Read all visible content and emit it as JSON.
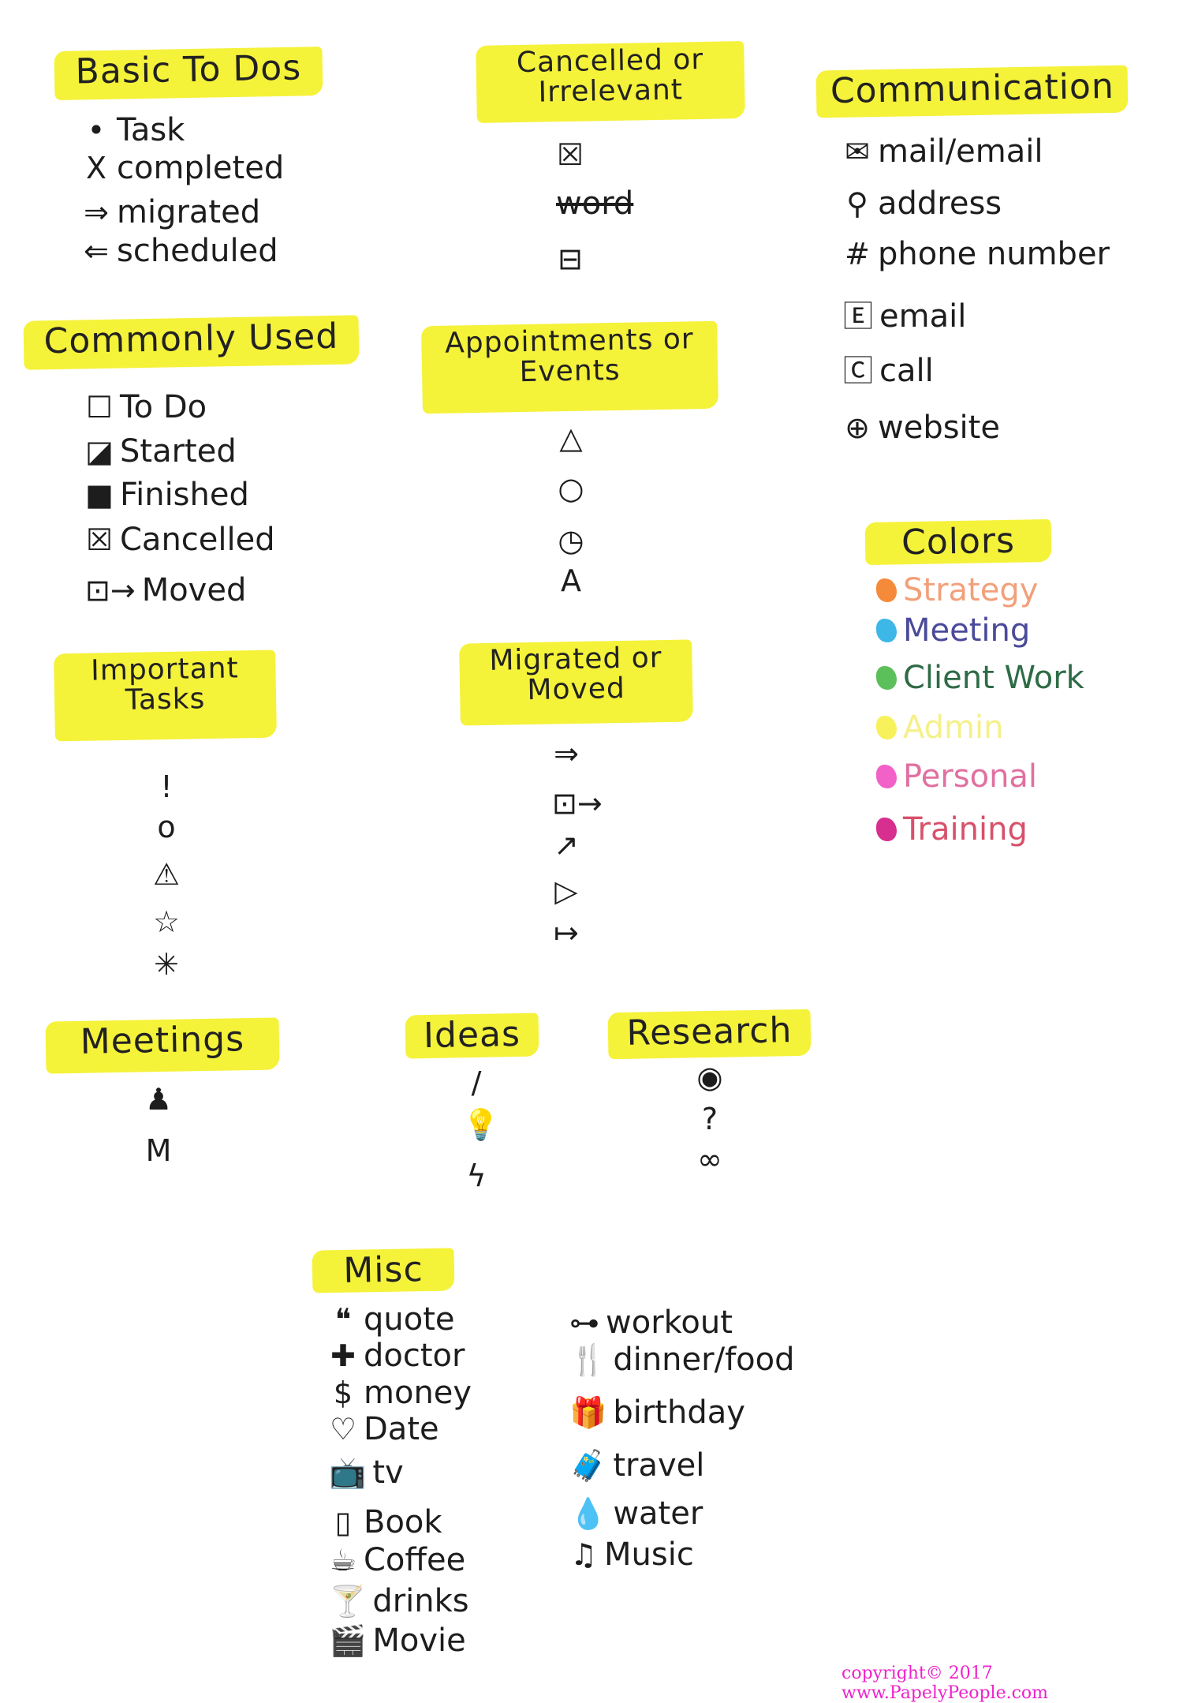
{
  "sections": [
    {
      "id": "basic",
      "title": "Basic To Dos",
      "items": [
        {
          "icon": "dot-icon",
          "glyph": "•",
          "label": "Task"
        },
        {
          "icon": "x-icon",
          "glyph": "X",
          "label": "completed"
        },
        {
          "icon": "right-arrow-icon",
          "glyph": "⇒",
          "label": "migrated"
        },
        {
          "icon": "left-arrow-icon",
          "glyph": "⇐",
          "label": "scheduled"
        }
      ]
    },
    {
      "id": "cancelled",
      "title": "Cancelled or Irrelevant",
      "items": [
        {
          "icon": "crossed-box-icon",
          "glyph": "☒",
          "label": ""
        },
        {
          "icon": "strikethrough-icon",
          "glyph": "",
          "label": "word",
          "strike": true
        },
        {
          "icon": "struck-box-icon",
          "glyph": "⊟",
          "label": ""
        }
      ]
    },
    {
      "id": "communication",
      "title": "Communication",
      "items": [
        {
          "icon": "envelope-icon",
          "glyph": "✉",
          "label": "mail/email"
        },
        {
          "icon": "map-pin-icon",
          "glyph": "⚲",
          "label": "address"
        },
        {
          "icon": "hash-icon",
          "glyph": "#",
          "label": "phone number"
        },
        {
          "icon": "boxed-e-icon",
          "glyph": "🄴",
          "label": "email"
        },
        {
          "icon": "boxed-c-icon",
          "glyph": "🄲",
          "label": "call"
        },
        {
          "icon": "globe-icon",
          "glyph": "⊕",
          "label": "website"
        }
      ]
    },
    {
      "id": "common",
      "title": "Commonly Used",
      "items": [
        {
          "icon": "empty-box-icon",
          "glyph": "☐",
          "label": "To Do"
        },
        {
          "icon": "half-box-icon",
          "glyph": "◪",
          "label": "Started"
        },
        {
          "icon": "filled-box-icon",
          "glyph": "■",
          "label": "Finished"
        },
        {
          "icon": "crossed-box-icon",
          "glyph": "☒",
          "label": "Cancelled"
        },
        {
          "icon": "box-arrow-icon",
          "glyph": "⊡→",
          "label": "Moved"
        }
      ]
    },
    {
      "id": "appointments",
      "title": "Appointments or Events",
      "items": [
        {
          "icon": "triangle-icon",
          "glyph": "△",
          "label": ""
        },
        {
          "icon": "circle-icon",
          "glyph": "○",
          "label": ""
        },
        {
          "icon": "clock-icon",
          "glyph": "◷",
          "label": ""
        },
        {
          "icon": "letter-a-icon",
          "glyph": "A",
          "label": ""
        }
      ]
    },
    {
      "id": "colors",
      "title": "Colors",
      "items": [
        {
          "icon": "swatch-icon",
          "color": "#f58a3a",
          "text_color": "#f2a07a",
          "label": "Strategy"
        },
        {
          "icon": "swatch-icon",
          "color": "#3cb7e8",
          "text_color": "#4b4a9a",
          "label": "Meeting"
        },
        {
          "icon": "swatch-icon",
          "color": "#5cc05a",
          "text_color": "#2e6b46",
          "label": "Client Work"
        },
        {
          "icon": "swatch-icon",
          "color": "#f7f25c",
          "text_color": "#f5f08a",
          "label": "Admin"
        },
        {
          "icon": "swatch-icon",
          "color": "#f261c8",
          "text_color": "#e070a0",
          "label": "Personal"
        },
        {
          "icon": "swatch-icon",
          "color": "#d62f8f",
          "text_color": "#d8506a",
          "label": "Training"
        }
      ]
    },
    {
      "id": "important",
      "title": "Important Tasks",
      "items": [
        {
          "icon": "exclamation-icon",
          "glyph": "!",
          "label": ""
        },
        {
          "icon": "circle-icon",
          "glyph": "o",
          "label": ""
        },
        {
          "icon": "warning-icon",
          "glyph": "⚠",
          "label": ""
        },
        {
          "icon": "star-icon",
          "glyph": "☆",
          "label": ""
        },
        {
          "icon": "asterisk-icon",
          "glyph": "✳",
          "label": ""
        }
      ]
    },
    {
      "id": "migrated",
      "title": "Migrated or Moved",
      "items": [
        {
          "icon": "double-arrow-icon",
          "glyph": "⇒",
          "label": ""
        },
        {
          "icon": "box-arrow-icon",
          "glyph": "⊡→",
          "label": ""
        },
        {
          "icon": "box-diagonal-arrow-icon",
          "glyph": "↗",
          "label": ""
        },
        {
          "icon": "play-triangle-icon",
          "glyph": "▷",
          "label": ""
        },
        {
          "icon": "bar-arrow-icon",
          "glyph": "↦",
          "label": ""
        }
      ]
    },
    {
      "id": "meetings",
      "title": "Meetings",
      "items": [
        {
          "icon": "person-icon",
          "glyph": "♟",
          "label": ""
        },
        {
          "icon": "letter-m-icon",
          "glyph": "M",
          "label": ""
        }
      ]
    },
    {
      "id": "ideas",
      "title": "Ideas",
      "items": [
        {
          "icon": "slash-icon",
          "glyph": "/",
          "label": ""
        },
        {
          "icon": "lightbulb-icon",
          "glyph": "💡",
          "label": ""
        },
        {
          "icon": "lightning-icon",
          "glyph": "ϟ",
          "label": ""
        }
      ]
    },
    {
      "id": "research",
      "title": "Research",
      "items": [
        {
          "icon": "eye-icon",
          "glyph": "◉",
          "label": ""
        },
        {
          "icon": "question-icon",
          "glyph": "?",
          "label": ""
        },
        {
          "icon": "glasses-icon",
          "glyph": "∞",
          "label": ""
        }
      ]
    },
    {
      "id": "misc",
      "title": "Misc",
      "items": [
        {
          "icon": "quote-icon",
          "glyph": "❝",
          "label": "quote"
        },
        {
          "icon": "cross-icon",
          "glyph": "✚",
          "label": "doctor"
        },
        {
          "icon": "dollar-icon",
          "glyph": "$",
          "label": "money"
        },
        {
          "icon": "heart-icon",
          "glyph": "♡",
          "label": "Date"
        },
        {
          "icon": "tv-icon",
          "glyph": "📺",
          "label": "tv"
        },
        {
          "icon": "book-icon",
          "glyph": "▯",
          "label": "Book"
        },
        {
          "icon": "coffee-icon",
          "glyph": "☕",
          "label": "Coffee"
        },
        {
          "icon": "cocktail-icon",
          "glyph": "🍸",
          "label": "drinks"
        },
        {
          "icon": "clapperboard-icon",
          "glyph": "🎬",
          "label": "Movie"
        }
      ]
    },
    {
      "id": "misc2",
      "title": "",
      "items": [
        {
          "icon": "dumbbell-icon",
          "glyph": "⊶",
          "label": "workout"
        },
        {
          "icon": "fork-knife-icon",
          "glyph": "🍴",
          "label": "dinner/food"
        },
        {
          "icon": "gift-icon",
          "glyph": "🎁",
          "label": "birthday"
        },
        {
          "icon": "suitcase-icon",
          "glyph": "🧳",
          "label": "travel"
        },
        {
          "icon": "drop-icon",
          "glyph": "💧",
          "label": "water"
        },
        {
          "icon": "music-note-icon",
          "glyph": "♫",
          "label": "Music"
        }
      ]
    }
  ],
  "copyright": "copyright© 2017 www.PapelyPeople.com"
}
